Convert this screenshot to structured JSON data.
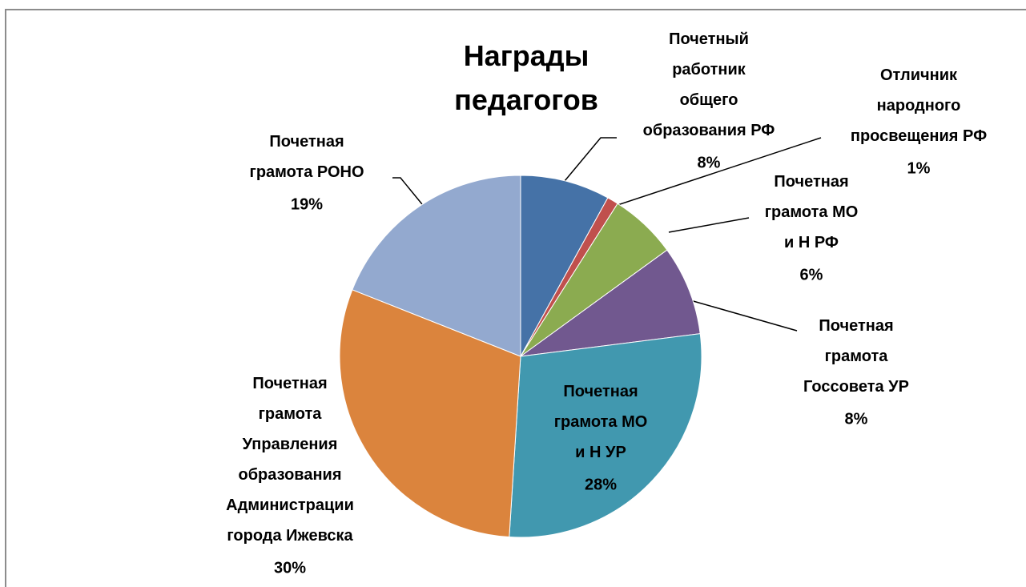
{
  "chart_data": {
    "type": "pie",
    "title": "Награды\nпедагогов",
    "categories": [
      "Почетный\nработник\nобщего\nобразования РФ",
      "Отличник\nнародного\nпросвещения РФ",
      "Почетная\nграмота МО\nи Н РФ",
      "Почетная\nграмота\nГоссовета УР",
      "Почетная\nграмота МО\nи Н УР",
      "Почетная\nграмота\nУправления\nобразования\nАдминистрации\nгорода Ижевска",
      "Почетная\nграмота  РОНО"
    ],
    "values": [
      8,
      1,
      6,
      8,
      28,
      30,
      19
    ],
    "value_labels": [
      "8%",
      "1%",
      "6%",
      "8%",
      "28%",
      "30%",
      "19%"
    ],
    "colors": [
      "#4572a7",
      "#c0504d",
      "#8bab50",
      "#71588f",
      "#4198af",
      "#db843d",
      "#93a9cf"
    ]
  }
}
